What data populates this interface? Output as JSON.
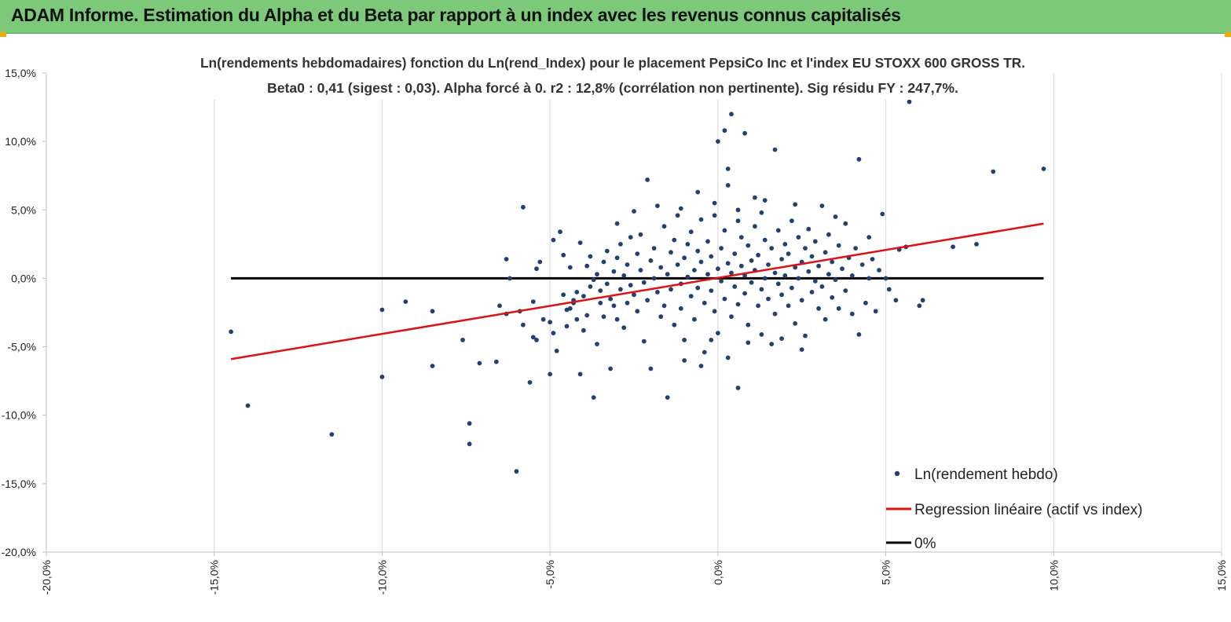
{
  "header": {
    "title": "ADAM Informe. Estimation du Alpha et du Beta par rapport à un index avec les revenus connus capitalisés"
  },
  "colors": {
    "header_bg": "#7dc97a",
    "points": "#23406e",
    "regression": "#e01010",
    "zero_line": "#000000",
    "grid": "#d9d9d9"
  },
  "chart_data": {
    "type": "scatter",
    "title": "Ln(rendements hebdomadaires) fonction du Ln(rend_Index) pour le placement PepsiCo Inc et l'index EU STOXX 600 GROSS TR.",
    "subtitle": "Beta0 : 0,41 (sigest : 0,03). Alpha forcé à 0. r2 : 12,8% (corrélation non pertinente). Sig résidu FY : 247,7%.",
    "xlim": [
      -0.2,
      0.15
    ],
    "ylim": [
      -0.2,
      0.15
    ],
    "x_ticks": [
      "-20,0%",
      "-15,0%",
      "-10,0%",
      "-5,0%",
      "0,0%",
      "5,0%",
      "10,0%",
      "15,0%"
    ],
    "y_ticks": [
      "15,0%",
      "10,0%",
      "5,0%",
      "0,0%",
      "-5,0%",
      "-10,0%",
      "-15,0%",
      "-20,0%"
    ],
    "grid": "vertical",
    "legend_position": "bottom-right",
    "series": [
      {
        "name": "Ln(rendement hebdo)",
        "kind": "scatter",
        "points": [
          [
            -0.145,
            -0.039
          ],
          [
            -0.14,
            -0.093
          ],
          [
            -0.115,
            -0.114
          ],
          [
            -0.1,
            -0.072
          ],
          [
            -0.1,
            -0.023
          ],
          [
            -0.093,
            -0.017
          ],
          [
            -0.085,
            -0.024
          ],
          [
            -0.085,
            -0.064
          ],
          [
            -0.076,
            -0.045
          ],
          [
            -0.074,
            -0.106
          ],
          [
            -0.074,
            -0.121
          ],
          [
            -0.071,
            -0.062
          ],
          [
            -0.066,
            -0.061
          ],
          [
            -0.065,
            -0.02
          ],
          [
            -0.063,
            -0.026
          ],
          [
            -0.063,
            0.014
          ],
          [
            -0.062,
            0.0
          ],
          [
            -0.06,
            -0.141
          ],
          [
            -0.059,
            -0.024
          ],
          [
            -0.058,
            0.052
          ],
          [
            -0.058,
            -0.034
          ],
          [
            -0.056,
            -0.076
          ],
          [
            -0.055,
            -0.043
          ],
          [
            -0.055,
            -0.017
          ],
          [
            -0.054,
            0.007
          ],
          [
            -0.054,
            -0.045
          ],
          [
            -0.053,
            0.012
          ],
          [
            -0.052,
            -0.03
          ],
          [
            -0.05,
            -0.032
          ],
          [
            -0.05,
            -0.07
          ],
          [
            -0.049,
            0.028
          ],
          [
            -0.049,
            -0.04
          ],
          [
            -0.048,
            -0.053
          ],
          [
            -0.047,
            0.034
          ],
          [
            -0.046,
            -0.012
          ],
          [
            -0.046,
            0.017
          ],
          [
            -0.045,
            -0.023
          ],
          [
            -0.045,
            -0.035
          ],
          [
            -0.044,
            -0.022
          ],
          [
            -0.044,
            0.008
          ],
          [
            -0.043,
            -0.018
          ],
          [
            -0.043,
            -0.016
          ],
          [
            -0.042,
            -0.03
          ],
          [
            -0.042,
            -0.01
          ],
          [
            -0.041,
            -0.07
          ],
          [
            -0.041,
            0.026
          ],
          [
            -0.04,
            -0.038
          ],
          [
            -0.04,
            -0.013
          ],
          [
            -0.039,
            0.009
          ],
          [
            -0.039,
            -0.027
          ],
          [
            -0.038,
            0.016
          ],
          [
            -0.038,
            -0.006
          ],
          [
            -0.037,
            -0.087
          ],
          [
            -0.037,
            -0.001
          ],
          [
            -0.036,
            -0.048
          ],
          [
            -0.036,
            0.003
          ],
          [
            -0.035,
            -0.018
          ],
          [
            -0.035,
            -0.009
          ],
          [
            -0.034,
            0.012
          ],
          [
            -0.034,
            -0.028
          ],
          [
            -0.033,
            -0.004
          ],
          [
            -0.033,
            0.02
          ],
          [
            -0.032,
            -0.015
          ],
          [
            -0.032,
            -0.066
          ],
          [
            -0.031,
            -0.02
          ],
          [
            -0.031,
            0.005
          ],
          [
            -0.03,
            0.015
          ],
          [
            -0.03,
            -0.03
          ],
          [
            -0.029,
            -0.008
          ],
          [
            -0.029,
            0.025
          ],
          [
            -0.028,
            0.002
          ],
          [
            -0.028,
            -0.036
          ],
          [
            -0.027,
            0.01
          ],
          [
            -0.027,
            -0.018
          ],
          [
            -0.026,
            0.03
          ],
          [
            -0.026,
            -0.005
          ],
          [
            -0.025,
            0.049
          ],
          [
            -0.025,
            -0.012
          ],
          [
            -0.024,
            0.018
          ],
          [
            -0.024,
            -0.024
          ],
          [
            -0.023,
            0.006
          ],
          [
            -0.023,
            0.032
          ],
          [
            -0.022,
            -0.003
          ],
          [
            -0.022,
            -0.046
          ],
          [
            -0.021,
            0.072
          ],
          [
            -0.021,
            -0.016
          ],
          [
            -0.02,
            0.013
          ],
          [
            -0.02,
            -0.066
          ],
          [
            -0.019,
            0.0
          ],
          [
            -0.019,
            0.022
          ],
          [
            -0.018,
            -0.01
          ],
          [
            -0.018,
            0.053
          ],
          [
            -0.017,
            -0.028
          ],
          [
            -0.017,
            0.008
          ],
          [
            -0.016,
            0.038
          ],
          [
            -0.016,
            -0.02
          ],
          [
            -0.015,
            0.003
          ],
          [
            -0.015,
            -0.087
          ],
          [
            -0.014,
            0.019
          ],
          [
            -0.014,
            -0.008
          ],
          [
            -0.013,
            0.028
          ],
          [
            -0.013,
            -0.034
          ],
          [
            -0.012,
            0.046
          ],
          [
            -0.012,
            0.01
          ],
          [
            -0.011,
            -0.004
          ],
          [
            -0.011,
            -0.022
          ],
          [
            -0.01,
            0.015
          ],
          [
            -0.01,
            -0.045
          ],
          [
            -0.009,
            0.025
          ],
          [
            -0.009,
            0.001
          ],
          [
            -0.008,
            -0.013
          ],
          [
            -0.008,
            0.034
          ],
          [
            -0.007,
            0.006
          ],
          [
            -0.007,
            -0.03
          ],
          [
            -0.006,
            0.02
          ],
          [
            -0.006,
            -0.007
          ],
          [
            -0.005,
            0.043
          ],
          [
            -0.005,
            0.012
          ],
          [
            -0.004,
            -0.018
          ],
          [
            -0.004,
            -0.054
          ],
          [
            -0.003,
            0.003
          ],
          [
            -0.003,
            0.027
          ],
          [
            -0.002,
            -0.009
          ],
          [
            -0.002,
            0.016
          ],
          [
            -0.001,
            -0.024
          ],
          [
            -0.001,
            0.055
          ],
          [
            0.0,
            0.007
          ],
          [
            0.0,
            -0.04
          ],
          [
            0.001,
            0.022
          ],
          [
            0.001,
            -0.002
          ],
          [
            0.002,
            0.035
          ],
          [
            0.002,
            -0.015
          ],
          [
            0.003,
            0.011
          ],
          [
            0.003,
            0.08
          ],
          [
            0.004,
            -0.028
          ],
          [
            0.004,
            0.004
          ],
          [
            0.005,
            0.018
          ],
          [
            0.005,
            -0.006
          ],
          [
            0.006,
            0.042
          ],
          [
            0.006,
            -0.019
          ],
          [
            0.007,
            0.009
          ],
          [
            0.007,
            0.03
          ],
          [
            0.008,
            -0.011
          ],
          [
            0.008,
            0.002
          ],
          [
            0.009,
            0.024
          ],
          [
            0.009,
            -0.034
          ],
          [
            0.01,
            0.013
          ],
          [
            0.01,
            -0.003
          ],
          [
            0.011,
            0.038
          ],
          [
            0.011,
            0.006
          ],
          [
            0.012,
            -0.02
          ],
          [
            0.012,
            0.017
          ],
          [
            0.013,
            -0.008
          ],
          [
            0.013,
            0.048
          ],
          [
            0.014,
            0.0
          ],
          [
            0.014,
            0.028
          ],
          [
            0.015,
            -0.015
          ],
          [
            0.015,
            0.01
          ],
          [
            0.016,
            -0.048
          ],
          [
            0.016,
            0.022
          ],
          [
            0.017,
            0.004
          ],
          [
            0.017,
            -0.026
          ],
          [
            0.018,
            0.035
          ],
          [
            0.018,
            -0.004
          ],
          [
            0.019,
            0.014
          ],
          [
            0.019,
            -0.012
          ],
          [
            0.02,
            0.025
          ],
          [
            0.02,
            0.002
          ],
          [
            0.021,
            -0.02
          ],
          [
            0.021,
            0.018
          ],
          [
            0.022,
            0.042
          ],
          [
            0.022,
            -0.007
          ],
          [
            0.023,
            0.008
          ],
          [
            0.023,
            -0.033
          ],
          [
            0.024,
            0.03
          ],
          [
            0.024,
            0.0
          ],
          [
            0.025,
            0.012
          ],
          [
            0.025,
            -0.016
          ],
          [
            0.026,
            0.022
          ],
          [
            0.026,
            -0.042
          ],
          [
            0.027,
            0.005
          ],
          [
            0.027,
            0.036
          ],
          [
            0.028,
            -0.01
          ],
          [
            0.028,
            0.016
          ],
          [
            0.029,
            -0.002
          ],
          [
            0.029,
            0.027
          ],
          [
            0.03,
            -0.022
          ],
          [
            0.03,
            0.009
          ],
          [
            0.031,
            0.053
          ],
          [
            0.031,
            -0.006
          ],
          [
            0.032,
            0.019
          ],
          [
            0.032,
            -0.03
          ],
          [
            0.033,
            0.003
          ],
          [
            0.033,
            0.032
          ],
          [
            0.034,
            -0.014
          ],
          [
            0.034,
            0.012
          ],
          [
            0.035,
            -0.001
          ],
          [
            0.036,
            0.024
          ],
          [
            0.036,
            -0.022
          ],
          [
            0.037,
            0.007
          ],
          [
            0.038,
            0.04
          ],
          [
            0.038,
            -0.009
          ],
          [
            0.039,
            0.015
          ],
          [
            0.04,
            -0.026
          ],
          [
            0.04,
            0.002
          ],
          [
            0.041,
            0.022
          ],
          [
            0.042,
            -0.041
          ],
          [
            0.042,
            0.087
          ],
          [
            0.043,
            0.01
          ],
          [
            0.044,
            -0.018
          ],
          [
            0.045,
            0.03
          ],
          [
            0.045,
            0.0
          ],
          [
            0.046,
            0.014
          ],
          [
            0.047,
            -0.024
          ],
          [
            0.048,
            0.006
          ],
          [
            0.049,
            0.047
          ],
          [
            0.05,
            0.0
          ],
          [
            0.051,
            -0.008
          ],
          [
            0.053,
            -0.016
          ],
          [
            0.054,
            0.021
          ],
          [
            0.056,
            0.023
          ],
          [
            0.057,
            0.129
          ],
          [
            0.06,
            -0.02
          ],
          [
            0.061,
            -0.016
          ],
          [
            0.07,
            0.023
          ],
          [
            0.077,
            0.025
          ],
          [
            0.082,
            0.078
          ],
          [
            0.097,
            0.08
          ],
          [
            0.0,
            0.1
          ],
          [
            0.002,
            0.108
          ],
          [
            0.004,
            0.12
          ],
          [
            0.008,
            0.106
          ],
          [
            0.017,
            0.094
          ],
          [
            -0.006,
            0.063
          ],
          [
            0.003,
            0.068
          ],
          [
            0.011,
            0.059
          ],
          [
            -0.011,
            0.051
          ],
          [
            0.014,
            0.057
          ],
          [
            0.023,
            0.054
          ],
          [
            -0.001,
            0.046
          ],
          [
            0.006,
            0.05
          ],
          [
            -0.002,
            -0.045
          ],
          [
            0.003,
            -0.058
          ],
          [
            0.006,
            -0.08
          ],
          [
            0.009,
            -0.047
          ],
          [
            -0.01,
            -0.06
          ],
          [
            -0.005,
            -0.064
          ],
          [
            0.013,
            -0.041
          ],
          [
            0.019,
            -0.044
          ],
          [
            0.025,
            -0.052
          ],
          [
            -0.03,
            0.04
          ],
          [
            0.035,
            0.045
          ]
        ]
      },
      {
        "name": "Regression linéaire (actif vs index)",
        "kind": "line",
        "points": [
          [
            -0.145,
            -0.059
          ],
          [
            0.097,
            0.04
          ]
        ]
      },
      {
        "name": "0%",
        "kind": "line",
        "points": [
          [
            -0.145,
            0.0
          ],
          [
            0.097,
            0.0
          ]
        ]
      }
    ]
  }
}
